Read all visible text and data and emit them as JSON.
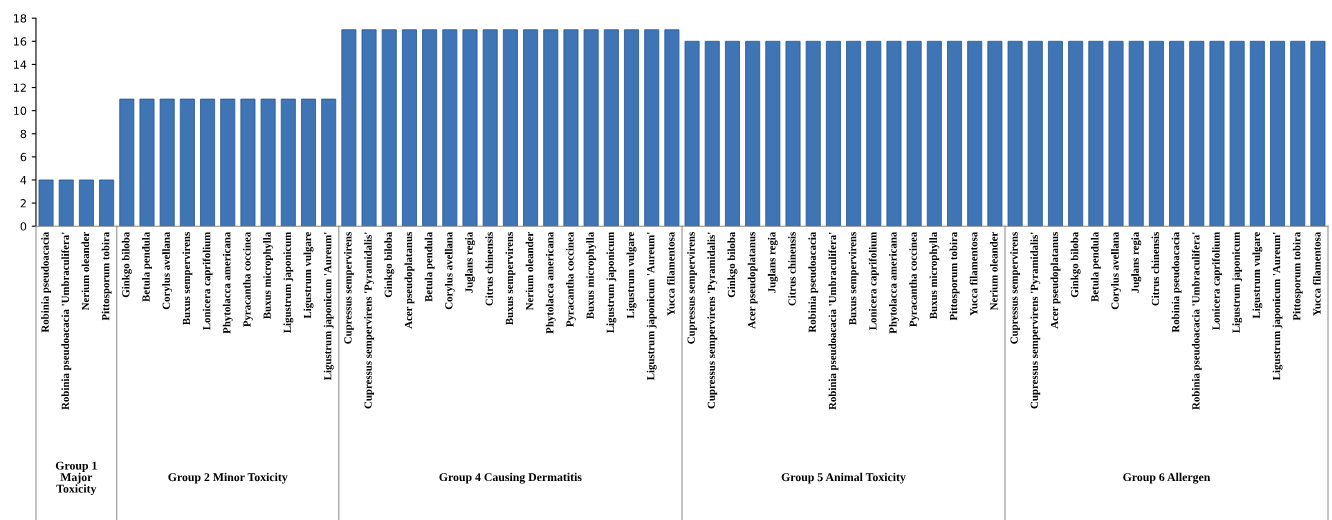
{
  "chart_data": [
    {
      "type": "bar",
      "xlabel": "Group 1 Major Toxicity",
      "color": "#3f74b5",
      "ylim": [
        0,
        18
      ],
      "yticks": [
        0,
        2,
        4,
        6,
        8,
        10,
        12,
        14,
        16,
        18
      ],
      "categories": [
        "Robinia pseudoacacia",
        "Robinia pseudoacacia 'Umbraculifera'",
        "Nerium oleander",
        "Pittosporum tobira"
      ],
      "values": [
        4,
        4,
        4,
        4
      ]
    },
    {
      "type": "bar",
      "xlabel": "Group 2 Minor Toxicity",
      "color": "#3f74b5",
      "ylim": [
        0,
        18
      ],
      "yticks": [
        0,
        2,
        4,
        6,
        8,
        10,
        12,
        14,
        16,
        18
      ],
      "tick_labels": "x",
      "categories": [
        "Ginkgo biloba",
        "Betula pendula",
        "Corylus avellana",
        "Buxus sempervirens",
        "Lonicera caprifolium",
        "Phytolacca americana",
        "Pyracantha coccinea",
        "Buxus microphylla",
        "Ligustrum japonicum",
        "Ligustrum vulgare",
        "Ligustrum japonicum 'Aureum'"
      ],
      "values": [
        11,
        11,
        11,
        11,
        11,
        11,
        11,
        11,
        11,
        11,
        11
      ]
    },
    {
      "type": "bar",
      "xlabel": "Group 4 Causing Dermatitis",
      "color": "#3f74b5",
      "ylim": [
        0,
        18
      ],
      "yticks": [
        0,
        2,
        4,
        6,
        8,
        10,
        12,
        14,
        16,
        18
      ],
      "tick_labels": "x",
      "categories": [
        "Cupressus sempervirens",
        "Cupressus sempervirens 'Pyramidalis'",
        "Ginkgo biloba",
        "Acer pseudoplatanus",
        "Betula pendula",
        "Corylus avellana",
        "Juglans regia",
        "Citrus chinensis",
        "Buxus sempervirens",
        "Nerium oleander",
        "Phytolacca americana",
        "Pyracantha coccinea",
        "Buxus microphylla",
        "Ligustrum japonicum",
        "Ligustrum vulgare",
        "Ligustrum japonicum 'Aureum'",
        "Yucca filamentosa"
      ],
      "values": [
        17,
        17,
        17,
        17,
        17,
        17,
        17,
        17,
        17,
        17,
        17,
        17,
        17,
        17,
        17,
        17,
        17
      ]
    },
    {
      "type": "bar",
      "xlabel": "Group 5 Animal Toxicity",
      "color": "#3f74b5",
      "ylim": [
        0,
        18
      ],
      "yticks": [
        0,
        2,
        4,
        6,
        8,
        10,
        12,
        14,
        16,
        18
      ],
      "tick_labels": "x",
      "categories": [
        "Cupressus sempervirens",
        "Cupressus sempervirens 'Pyramidalis'",
        "Ginkgo biloba",
        "Acer pseudoplatanus",
        "Juglans regia",
        "Citrus chinensis",
        "Robinia pseudoacacia",
        "Robinia pseudoacacia 'Umbraculifera'",
        "Buxus sempervirens",
        "Lonicera caprifolium",
        "Phytolacca americana",
        "Pyracantha coccinea",
        "Buxus microphylla",
        "Pittosporum tobira",
        "Yucca filamentosa",
        "Nerium oleander"
      ],
      "values": [
        16,
        16,
        16,
        16,
        16,
        16,
        16,
        16,
        16,
        16,
        16,
        16,
        16,
        16,
        16,
        16
      ]
    },
    {
      "type": "bar",
      "xlabel": "Group 6 Allergen",
      "color": "#3f74b5",
      "ylim": [
        0,
        18
      ],
      "yticks": [
        0,
        2,
        4,
        6,
        8,
        10,
        12,
        14,
        16,
        18
      ],
      "tick_labels": "x",
      "categories": [
        "Cupressus sempervirens",
        "Cupressus sempervirens 'Pyramidalis'",
        "Acer pseudoplatanus",
        "Ginkgo biloba",
        "Betula pendula",
        "Corylus avellana",
        "Juglans regia",
        "Citrus chinensis",
        "Robinia pseudoacacia",
        "Robinia pseudoacacia 'Umbraculifera'",
        "Lonicera caprifolium",
        "Ligustrum japonicum",
        "Ligustrum vulgare",
        "Ligustrum japonicum 'Aureum'",
        "Pittosporum tobira",
        "Yucca filamentosa"
      ],
      "values": [
        16,
        16,
        16,
        16,
        16,
        16,
        16,
        16,
        16,
        16,
        16,
        16,
        16,
        16,
        16,
        16
      ]
    }
  ]
}
